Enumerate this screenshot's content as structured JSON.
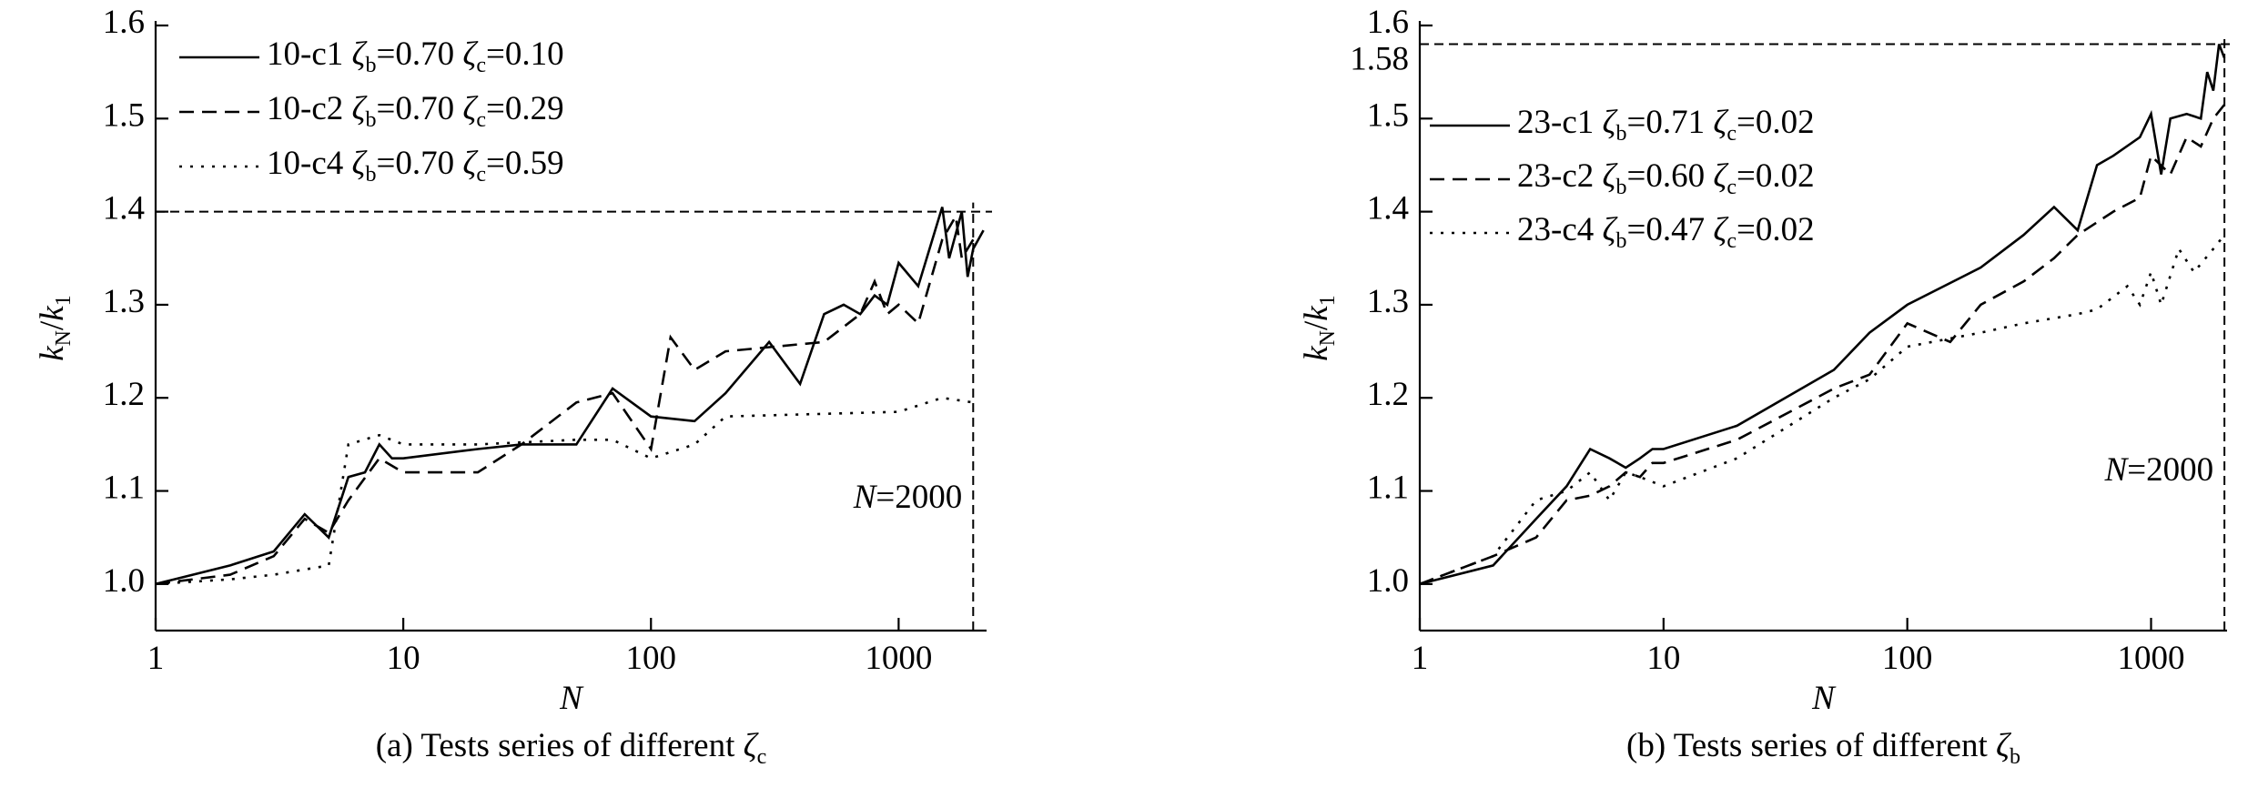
{
  "chart_data": [
    {
      "type": "line",
      "caption": "(a) Tests series of different ζc",
      "xlabel": "N",
      "ylabel": "kN/k1",
      "xscale": "log",
      "xlim": [
        1,
        2265
      ],
      "ylim": [
        0.95,
        1.6
      ],
      "xticks": [
        1,
        10,
        100,
        1000
      ],
      "yticks": [
        {
          "value": 1,
          "label": "1.0"
        },
        1.1,
        1.2,
        1.3,
        {
          "value": 1.4,
          "label": "1.4"
        },
        1.5,
        1.6
      ],
      "legend": "upper left",
      "hline": {
        "value": 1.4
      },
      "vline": {
        "value": 2000
      },
      "annotation": "N=2000",
      "series": [
        {
          "name": "10-c1 ζb=0.70 ζc=0.10",
          "color": "#000000",
          "dash": "solid",
          "x": [
            1,
            2,
            3,
            4,
            5,
            6,
            7,
            8,
            9,
            10,
            20,
            30,
            50,
            70,
            100,
            150,
            200,
            300,
            400,
            500,
            600,
            700,
            800,
            900,
            1000,
            1200,
            1500,
            1600,
            1800,
            1900,
            2000,
            2200
          ],
          "values": [
            1.0,
            1.02,
            1.035,
            1.075,
            1.05,
            1.115,
            1.12,
            1.15,
            1.135,
            1.135,
            1.145,
            1.15,
            1.15,
            1.21,
            1.18,
            1.175,
            1.205,
            1.26,
            1.215,
            1.29,
            1.3,
            1.29,
            1.31,
            1.3,
            1.345,
            1.32,
            1.405,
            1.35,
            1.4,
            1.33,
            1.36,
            1.38
          ]
        },
        {
          "name": "10-c2 ζb=0.70 ζc=0.29",
          "color": "#000000",
          "dash": "dashed",
          "x": [
            1,
            2,
            3,
            4,
            5,
            6,
            8,
            10,
            20,
            30,
            50,
            70,
            100,
            120,
            150,
            200,
            500,
            700,
            800,
            900,
            1000,
            1200,
            1500,
            1700,
            1800,
            2000
          ],
          "values": [
            1.0,
            1.01,
            1.03,
            1.07,
            1.055,
            1.09,
            1.135,
            1.12,
            1.12,
            1.15,
            1.195,
            1.205,
            1.145,
            1.265,
            1.23,
            1.25,
            1.26,
            1.29,
            1.325,
            1.29,
            1.3,
            1.28,
            1.37,
            1.395,
            1.35,
            1.37
          ]
        },
        {
          "name": "10-c4 ζb=0.70 ζc=0.59",
          "color": "#000000",
          "dash": "dotted",
          "x": [
            1,
            2,
            3,
            5,
            6,
            8,
            10,
            20,
            50,
            70,
            100,
            150,
            200,
            1000,
            1500,
            2000
          ],
          "values": [
            1.0,
            1.005,
            1.01,
            1.02,
            1.15,
            1.16,
            1.15,
            1.15,
            1.155,
            1.155,
            1.135,
            1.15,
            1.18,
            1.185,
            1.2,
            1.195
          ]
        }
      ]
    },
    {
      "type": "line",
      "caption": "(b) Tests series of different ζb",
      "xlabel": "N",
      "ylabel": "kN/k1",
      "xscale": "log",
      "xlim": [
        1,
        2050
      ],
      "ylim": [
        0.95,
        1.6
      ],
      "xticks": [
        1,
        10,
        100,
        1000
      ],
      "yticks": [
        {
          "value": 1,
          "label": "1.0"
        },
        1.1,
        1.2,
        1.3,
        1.4,
        1.5,
        1.6
      ],
      "legend": "upper left",
      "hline": {
        "value": 1.58,
        "label": "1.58"
      },
      "vline": {
        "value": 2000
      },
      "annotation": "N=2000",
      "series": [
        {
          "name": "23-c1 ζb=0.71 ζc=0.02",
          "color": "#000000",
          "dash": "solid",
          "x": [
            1,
            2,
            3,
            4,
            5,
            6,
            7,
            8,
            9,
            10,
            20,
            50,
            70,
            100,
            200,
            300,
            400,
            500,
            600,
            700,
            900,
            1000,
            1100,
            1200,
            1400,
            1600,
            1700,
            1800,
            1900,
            2000
          ],
          "values": [
            1.0,
            1.02,
            1.07,
            1.105,
            1.145,
            1.135,
            1.125,
            1.135,
            1.145,
            1.145,
            1.17,
            1.23,
            1.27,
            1.3,
            1.34,
            1.375,
            1.405,
            1.38,
            1.45,
            1.46,
            1.48,
            1.505,
            1.44,
            1.5,
            1.505,
            1.5,
            1.55,
            1.53,
            1.58,
            1.565
          ]
        },
        {
          "name": "23-c2 ζb=0.60 ζc=0.02",
          "color": "#000000",
          "dash": "dashed",
          "x": [
            1,
            2,
            3,
            4,
            5,
            6,
            7,
            8,
            9,
            10,
            20,
            50,
            70,
            100,
            150,
            200,
            300,
            400,
            500,
            700,
            900,
            1000,
            1200,
            1400,
            1600,
            1800,
            2000
          ],
          "values": [
            1.0,
            1.03,
            1.05,
            1.09,
            1.095,
            1.105,
            1.12,
            1.115,
            1.13,
            1.13,
            1.155,
            1.21,
            1.225,
            1.28,
            1.26,
            1.3,
            1.325,
            1.35,
            1.375,
            1.4,
            1.415,
            1.46,
            1.44,
            1.48,
            1.47,
            1.5,
            1.515
          ]
        },
        {
          "name": "23-c4 ζb=0.47 ζc=0.02",
          "color": "#000000",
          "dash": "dotted",
          "x": [
            1,
            2,
            3,
            4,
            5,
            6,
            7,
            8,
            10,
            20,
            50,
            70,
            100,
            200,
            300,
            500,
            600,
            800,
            900,
            1000,
            1100,
            1300,
            1500,
            1800,
            2000
          ],
          "values": [
            1.0,
            1.03,
            1.09,
            1.1,
            1.12,
            1.09,
            1.12,
            1.115,
            1.105,
            1.135,
            1.2,
            1.22,
            1.255,
            1.27,
            1.28,
            1.29,
            1.295,
            1.32,
            1.3,
            1.335,
            1.3,
            1.36,
            1.335,
            1.36,
            1.375
          ]
        }
      ]
    }
  ]
}
